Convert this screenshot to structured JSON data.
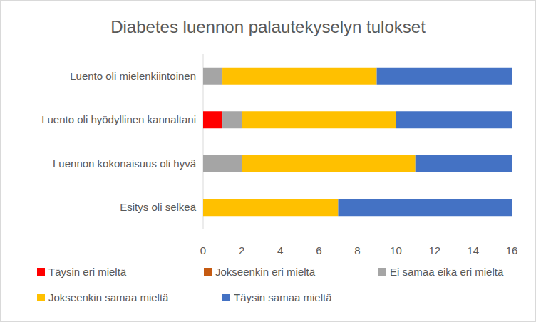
{
  "chart_data": {
    "type": "bar",
    "title": "Diabetes luennon palautekyselyn tulokset",
    "orientation": "horizontal",
    "stacked": true,
    "grid": false,
    "legend": "bottom",
    "categories": [
      "Luento oli mielenkiintoinen",
      "Luento oli hyödyllinen kannaltani",
      "Luennon kokonaisuus oli hyvä",
      "Esitys oli selkeä"
    ],
    "series": [
      {
        "name": "Täysin eri mieltä",
        "color": "#ff0000",
        "values": [
          0,
          1,
          0,
          0
        ]
      },
      {
        "name": "Jokseenkin eri mieltä",
        "color": "#c55a11",
        "values": [
          0,
          0,
          0,
          0
        ]
      },
      {
        "name": "Ei samaa eikä eri mieltä",
        "color": "#a5a5a5",
        "values": [
          1,
          1,
          2,
          0
        ]
      },
      {
        "name": "Jokseenkin samaa mieltä",
        "color": "#ffc000",
        "values": [
          8,
          8,
          9,
          7
        ]
      },
      {
        "name": "Täysin samaa mieltä",
        "color": "#4472c4",
        "values": [
          7,
          6,
          5,
          9
        ]
      }
    ],
    "xlim": [
      0,
      16
    ],
    "xticks": [
      0,
      2,
      4,
      6,
      8,
      10,
      12,
      14,
      16
    ]
  }
}
